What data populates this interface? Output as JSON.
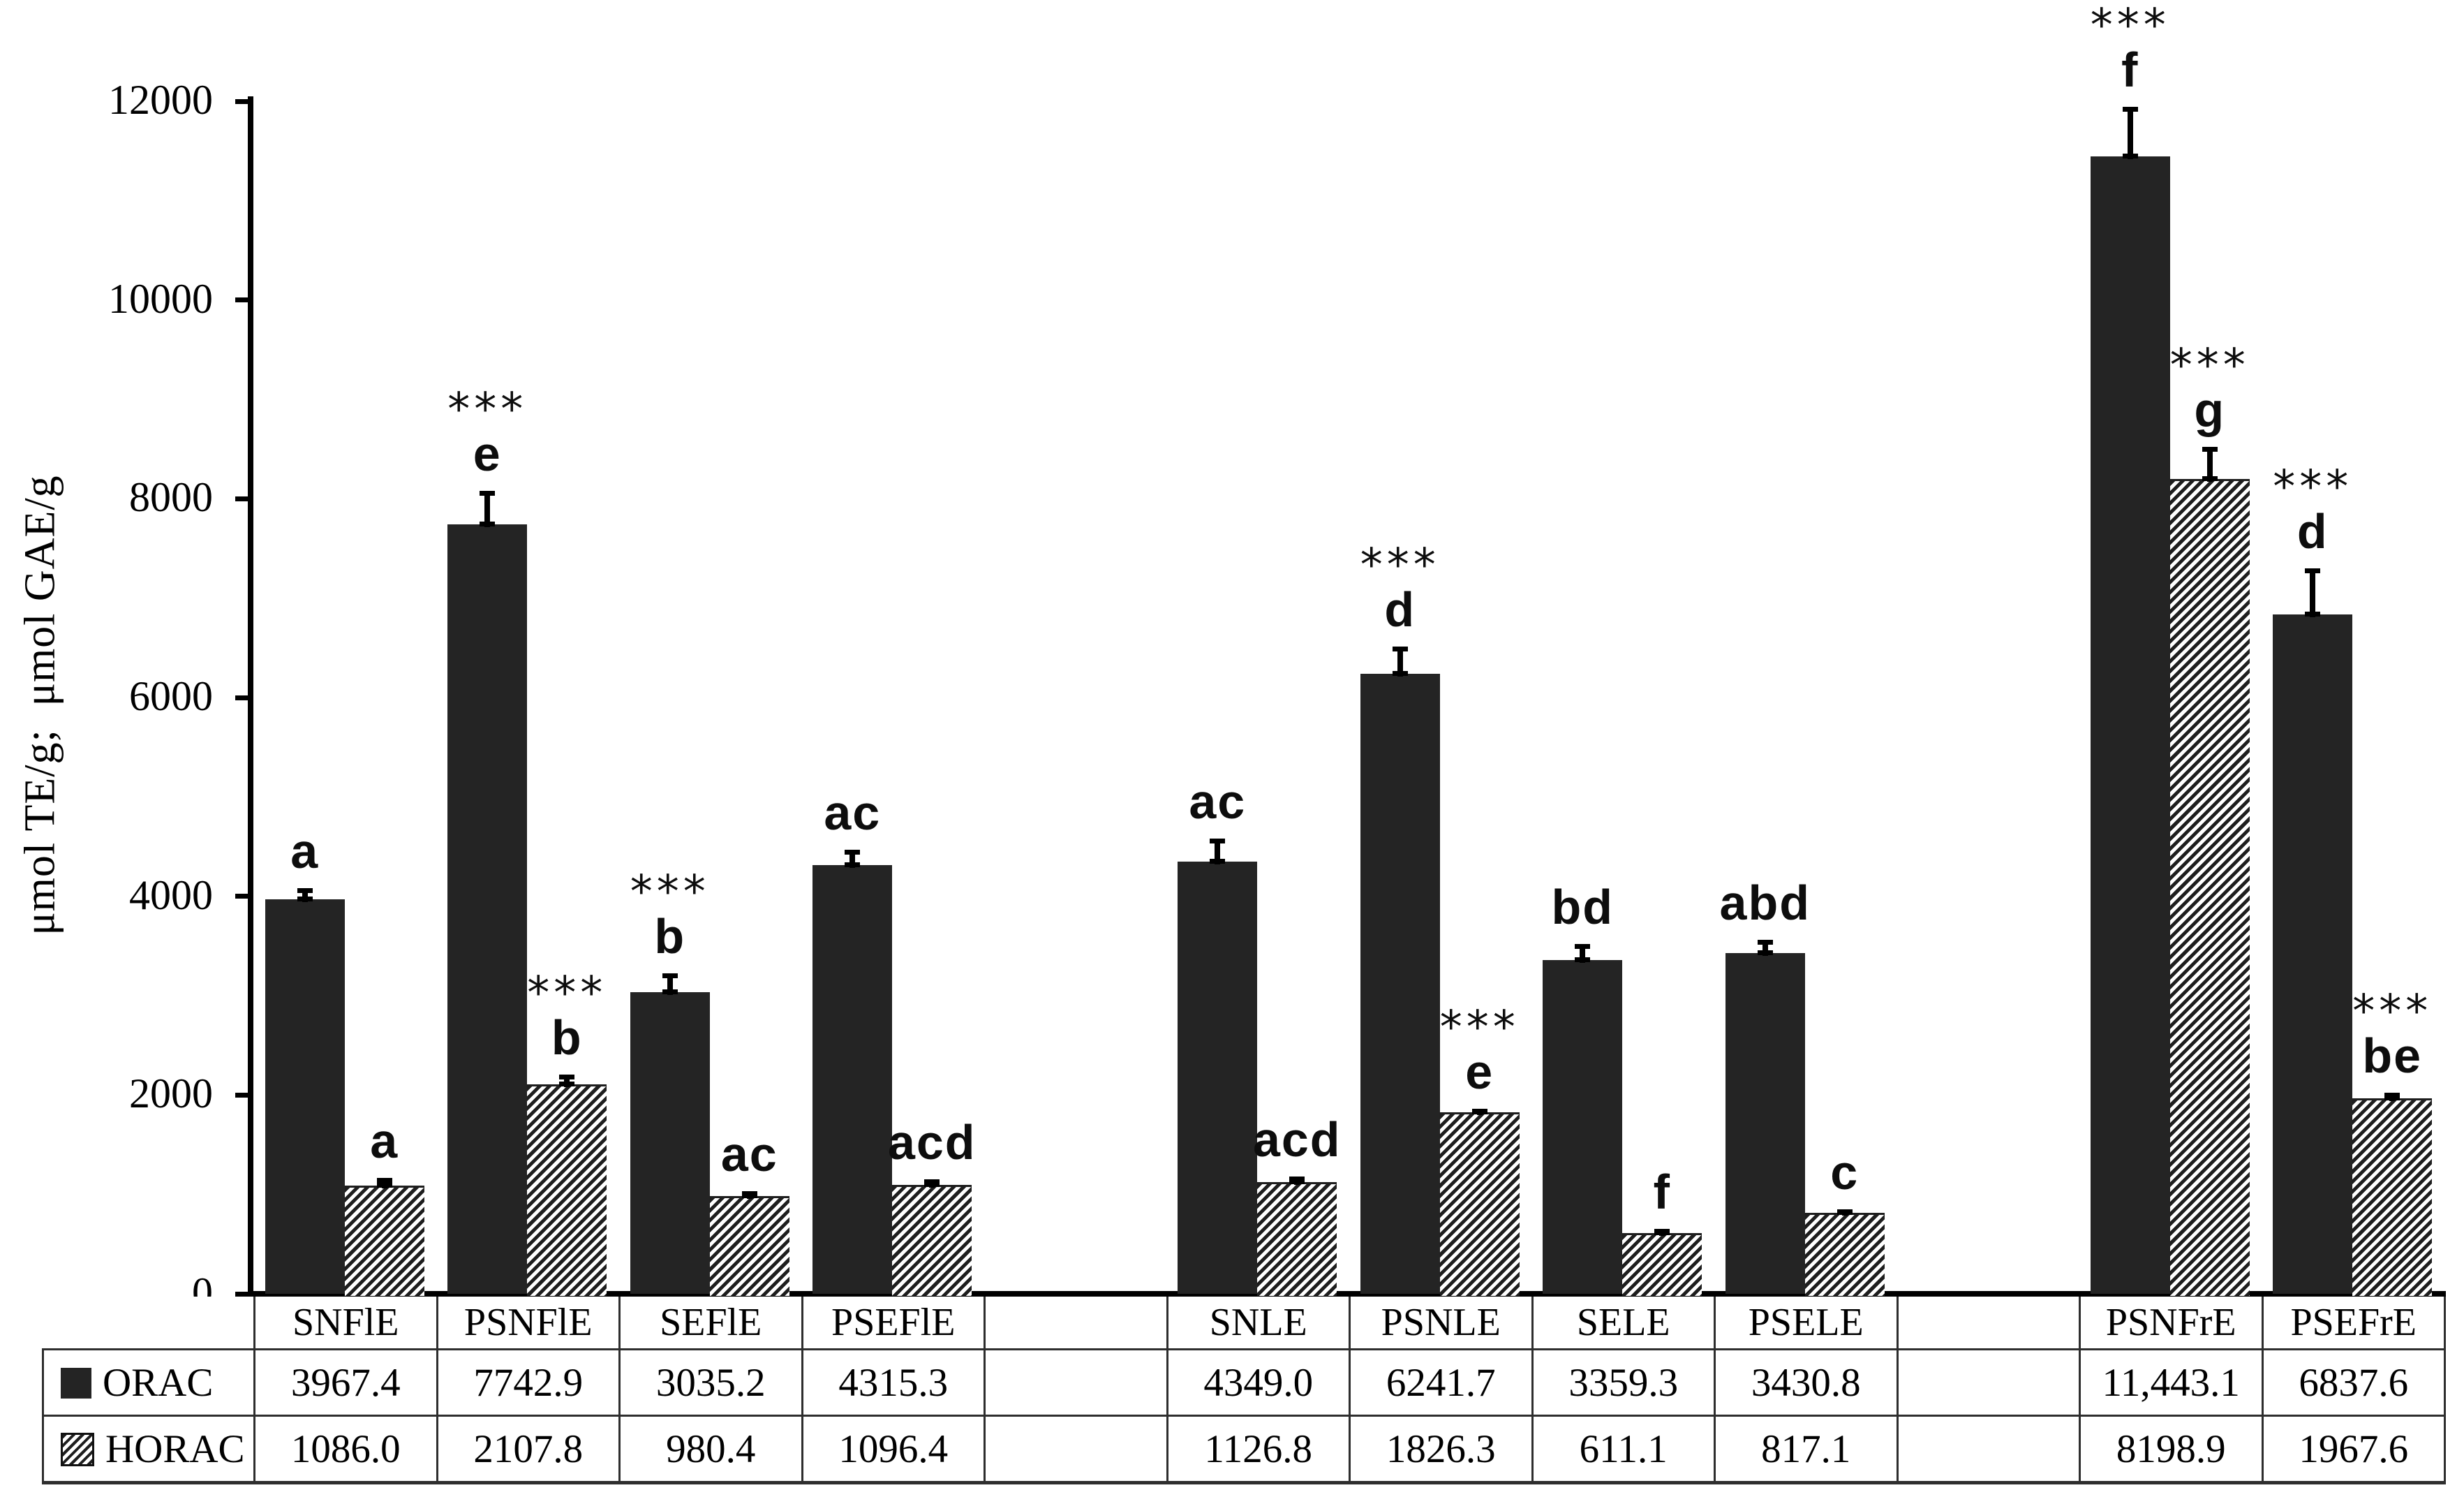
{
  "colors": {
    "bar": "#242424",
    "axis": "#000000",
    "table_border": "#2e2e2e",
    "background": "#ffffff"
  },
  "y_axis": {
    "title": "μmol TE/g;  μmol GAE/g",
    "ticks": [
      0,
      2000,
      4000,
      6000,
      8000,
      10000,
      12000
    ]
  },
  "legend": [
    {
      "label": "ORAC",
      "marker": "solid-black-square"
    },
    {
      "label": "HORAC",
      "marker": "hatched-square"
    }
  ],
  "chart_data": {
    "type": "bar",
    "title": "",
    "xlabel": "",
    "ylabel": "μmol TE/g;  μmol GAE/g",
    "ylim": [
      0,
      12000
    ],
    "grid": false,
    "legend_position": "table-left",
    "categories": [
      "SNFlE",
      "PSNFlE",
      "SEFlE",
      "PSEFlE",
      "",
      "SNLE",
      "PSNLE",
      "SELE",
      "PSELE",
      "",
      "PSNFrE",
      "PSEFrE"
    ],
    "series": [
      {
        "name": "ORAC",
        "pattern": "solid",
        "values": [
          3967.4,
          7742.9,
          3035.2,
          4315.3,
          null,
          4349.0,
          6241.7,
          3359.3,
          3430.8,
          null,
          11443.1,
          6837.6
        ],
        "error": [
          115,
          340,
          190,
          150,
          null,
          230,
          270,
          160,
          130,
          null,
          500,
          460
        ],
        "annotations": [
          {
            "letter": "a",
            "stars": ""
          },
          {
            "letter": "e",
            "stars": "***"
          },
          {
            "letter": "b",
            "stars": "***"
          },
          {
            "letter": "ac",
            "stars": ""
          },
          null,
          {
            "letter": "ac",
            "stars": ""
          },
          {
            "letter": "d",
            "stars": "***"
          },
          {
            "letter": "bd",
            "stars": ""
          },
          {
            "letter": "abd",
            "stars": ""
          },
          null,
          {
            "letter": "f",
            "stars": "***"
          },
          {
            "letter": "d",
            "stars": "***"
          }
        ]
      },
      {
        "name": "HORAC",
        "pattern": "hatched",
        "values": [
          1086.0,
          2107.8,
          980.4,
          1096.4,
          null,
          1126.8,
          1826.3,
          611.1,
          817.1,
          null,
          8198.9,
          1967.6
        ],
        "error": [
          80,
          100,
          55,
          55,
          null,
          55,
          35,
          40,
          35,
          null,
          320,
          55
        ],
        "annotations": [
          {
            "letter": "a",
            "stars": ""
          },
          {
            "letter": "b",
            "stars": "***"
          },
          {
            "letter": "ac",
            "stars": ""
          },
          {
            "letter": "acd",
            "stars": ""
          },
          null,
          {
            "letter": "acd",
            "stars": ""
          },
          {
            "letter": "e",
            "stars": "***"
          },
          {
            "letter": "f",
            "stars": ""
          },
          {
            "letter": "c",
            "stars": ""
          },
          null,
          {
            "letter": "g",
            "stars": "***"
          },
          {
            "letter": "be",
            "stars": "***"
          }
        ]
      }
    ],
    "table": {
      "header": [
        "",
        "SNFlE",
        "PSNFlE",
        "SEFlE",
        "PSEFlE",
        "",
        "SNLE",
        "PSNLE",
        "SELE",
        "PSELE",
        "",
        "PSNFrE",
        "PSEFrE"
      ],
      "rows": [
        {
          "label": "ORAC",
          "cells": [
            "3967.4",
            "7742.9",
            "3035.2",
            "4315.3",
            "",
            "4349.0",
            "6241.7",
            "3359.3",
            "3430.8",
            "",
            "11,443.1",
            "6837.6"
          ]
        },
        {
          "label": "HORAC",
          "cells": [
            "1086.0",
            "2107.8",
            "980.4",
            "1096.4",
            "",
            "1126.8",
            "1826.3",
            "611.1",
            "817.1",
            "",
            "8198.9",
            "1967.6"
          ]
        }
      ]
    }
  }
}
